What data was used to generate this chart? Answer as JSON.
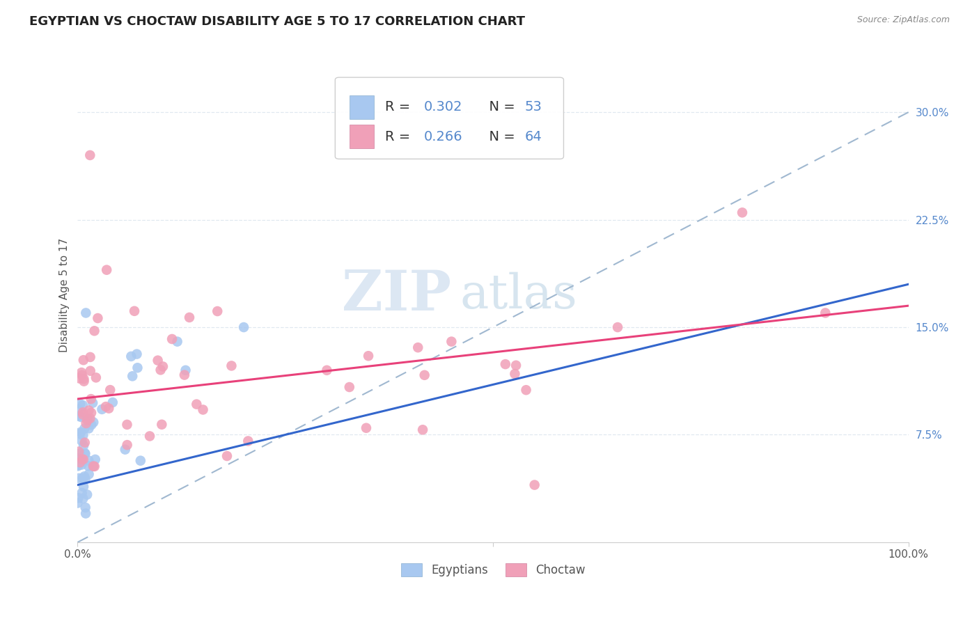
{
  "title": "EGYPTIAN VS CHOCTAW DISABILITY AGE 5 TO 17 CORRELATION CHART",
  "source": "Source: ZipAtlas.com",
  "ylabel": "Disability Age 5 to 17",
  "xlim": [
    0,
    1.0
  ],
  "ylim": [
    0,
    0.345
  ],
  "xtick_left_label": "0.0%",
  "xtick_right_label": "100.0%",
  "yticks": [
    0.075,
    0.15,
    0.225,
    0.3
  ],
  "yticklabels": [
    "7.5%",
    "15.0%",
    "22.5%",
    "30.0%"
  ],
  "R_egyptian": 0.302,
  "N_egyptian": 53,
  "R_choctaw": 0.266,
  "N_choctaw": 64,
  "color_egyptian": "#a8c8f0",
  "color_choctaw": "#f0a0b8",
  "trend_color_egyptian": "#3366cc",
  "trend_color_choctaw": "#e8417a",
  "ref_line_color": "#a0b8d0",
  "background_color": "#ffffff",
  "watermark_zip": "ZIP",
  "watermark_atlas": "atlas",
  "title_fontsize": 13,
  "axis_label_fontsize": 11,
  "tick_fontsize": 11,
  "legend_fontsize": 13,
  "grid_color": "#e0e8f0",
  "tick_color": "#5588cc"
}
